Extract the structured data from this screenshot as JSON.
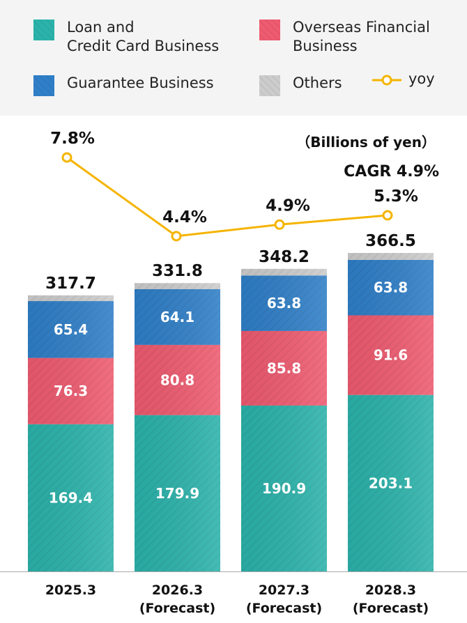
{
  "legend": [
    {
      "label": "Loan and\nCredit Card Business",
      "color": "#2bb3ab"
    },
    {
      "label": "Overseas Financial\nBusiness",
      "color": "#ef5b70"
    },
    {
      "label": "Guarantee Business",
      "color": "#2f7fc8"
    },
    {
      "label": "Others",
      "color": "#cccccc"
    },
    {
      "label": "yoy",
      "color": "#f5b400"
    }
  ],
  "chart_data": {
    "type": "bar",
    "stacked": true,
    "unit_label": "（Billions of yen）",
    "annotation": "CAGR 4.9%",
    "categories": [
      "2025.3",
      "2026.3\n(Forecast)",
      "2027.3\n(Forecast)",
      "2028.3\n(Forecast)"
    ],
    "series": [
      {
        "name": "Loan and Credit Card Business",
        "color": "#2bb3ab",
        "values": [
          169.4,
          179.9,
          190.9,
          203.1
        ]
      },
      {
        "name": "Overseas Financial Business",
        "color": "#ef5b70",
        "values": [
          76.3,
          80.8,
          85.8,
          91.6
        ]
      },
      {
        "name": "Guarantee Business",
        "color": "#2f7fc8",
        "values": [
          65.4,
          64.1,
          63.8,
          63.8
        ]
      },
      {
        "name": "Others",
        "color": "#cccccc",
        "values": [
          6.6,
          7.0,
          7.7,
          8.0
        ]
      }
    ],
    "totals": [
      "317.7",
      "331.8",
      "348.2",
      "366.5"
    ],
    "line": {
      "name": "yoy",
      "color": "#f5b400",
      "values": [
        7.8,
        4.4,
        4.9,
        5.3
      ],
      "labels": [
        "7.8%",
        "4.4%",
        "4.9%",
        "5.3%"
      ]
    }
  }
}
